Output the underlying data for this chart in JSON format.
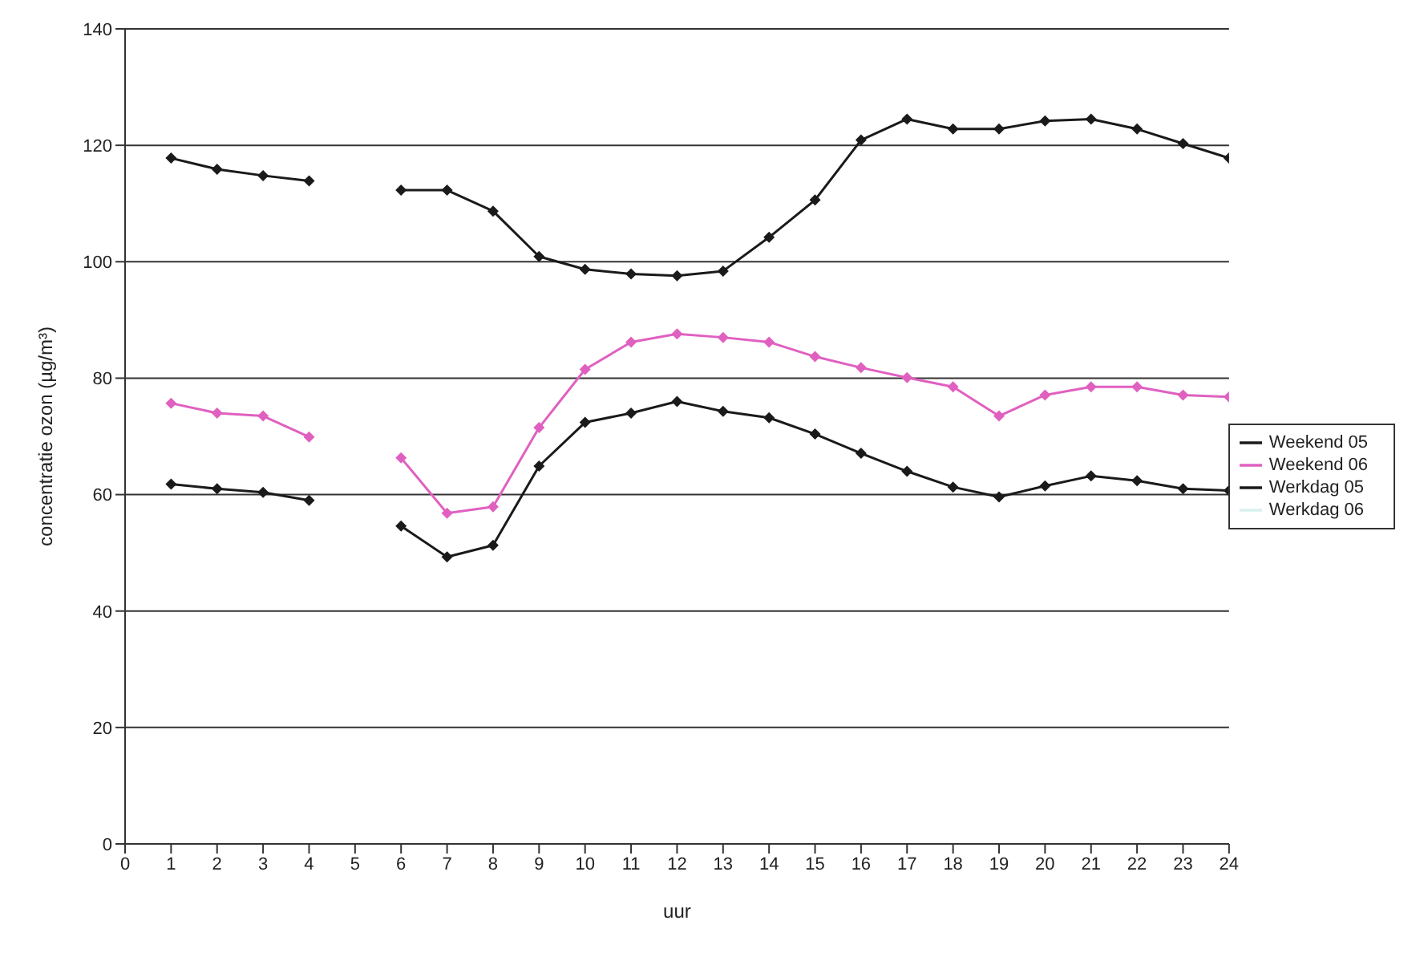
{
  "chart_data": {
    "type": "line",
    "xlabel": "uur",
    "ylabel": "concentratie ozon (µg/m³)",
    "x": [
      1,
      2,
      3,
      4,
      5,
      6,
      7,
      8,
      9,
      10,
      11,
      12,
      13,
      14,
      15,
      16,
      17,
      18,
      19,
      20,
      21,
      22,
      23,
      24
    ],
    "series": [
      {
        "name": "Weekend 05",
        "color": "#1a1a1a",
        "values": [
          117.8,
          115.9,
          114.8,
          113.9,
          null,
          112.3,
          112.3,
          108.7,
          100.9,
          98.7,
          97.9,
          97.6,
          98.4,
          104.2,
          110.6,
          120.9,
          124.5,
          122.8,
          122.8,
          124.2,
          124.5,
          122.8,
          120.3,
          117.8
        ]
      },
      {
        "name": "Weekend 06",
        "color": "#e060c0",
        "values": [
          75.7,
          74,
          73.5,
          69.9,
          null,
          66.3,
          56.8,
          57.9,
          71.5,
          81.5,
          86.2,
          87.6,
          87,
          86.2,
          83.7,
          81.8,
          80.1,
          78.5,
          73.5,
          77.1,
          78.5,
          78.5,
          77.1,
          76.8
        ]
      },
      {
        "name": "Werkdag 05",
        "color": "#1a1a1a",
        "values": [
          61.8,
          61,
          60.4,
          59,
          null,
          54.6,
          49.3,
          51.3,
          64.9,
          72.4,
          74,
          76,
          74.3,
          73.2,
          70.4,
          67.1,
          64,
          61.3,
          59.6,
          61.5,
          63.2,
          62.4,
          61,
          60.7
        ]
      },
      {
        "name": "Werkdag 06",
        "color": "#d8f0ee",
        "values": [
          null,
          null,
          null,
          null,
          null,
          null,
          null,
          null,
          null,
          null,
          null,
          null,
          null,
          null,
          null,
          null,
          null,
          null,
          null,
          null,
          null,
          null,
          null,
          null
        ]
      }
    ],
    "xlim": [
      0,
      24
    ],
    "xticks": [
      0,
      1,
      2,
      3,
      4,
      5,
      6,
      7,
      8,
      9,
      10,
      11,
      12,
      13,
      14,
      15,
      16,
      17,
      18,
      19,
      20,
      21,
      22,
      23,
      24
    ],
    "ylim": [
      0,
      140
    ],
    "yticks": [
      0,
      20,
      40,
      60,
      80,
      100,
      120,
      140
    ],
    "grid": "y",
    "legend": "right",
    "marker": "diamond",
    "line_style": "solid"
  }
}
